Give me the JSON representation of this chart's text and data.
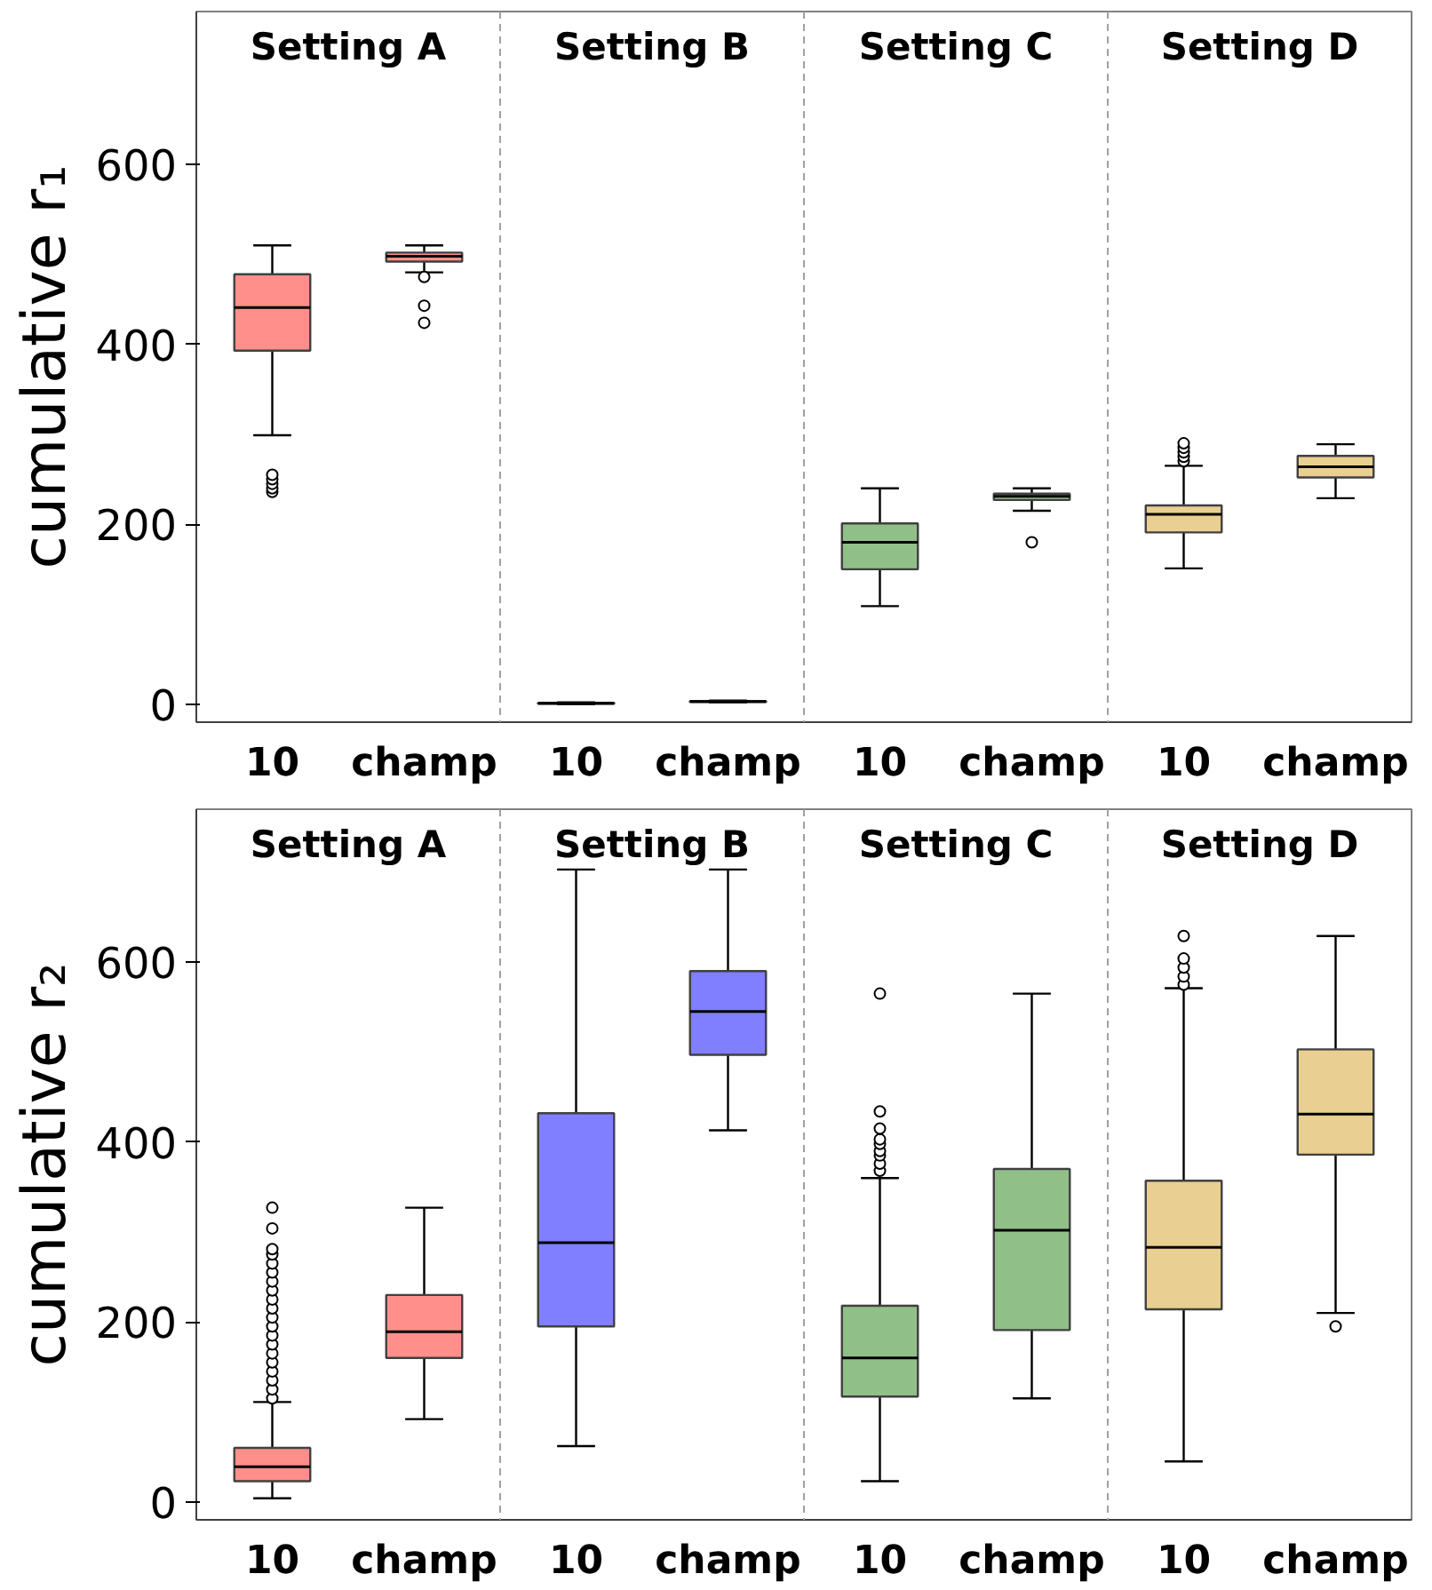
{
  "chart_data": [
    {
      "type": "box",
      "ylabel": "cumulative r₁",
      "categories": [
        "10",
        "champ",
        "10",
        "champ",
        "10",
        "champ",
        "10",
        "champ"
      ],
      "ylim": [
        -20,
        770
      ],
      "yticks": [
        0,
        200,
        400,
        600
      ],
      "grid": false,
      "colors": [
        "#ff8f8a",
        "#ff8f8a",
        "#7f7fff",
        "#7f7fff",
        "#90c088",
        "#90c088",
        "#e9cf91",
        "#e9cf91"
      ],
      "boxes": [
        {
          "low": 299,
          "q1": 393,
          "median": 441,
          "q3": 478,
          "high": 510,
          "outliers": [
            236,
            240,
            245,
            250,
            255
          ]
        },
        {
          "low": 480,
          "q1": 492,
          "median": 498,
          "q3": 502,
          "high": 510,
          "outliers": [
            475,
            443,
            424
          ]
        },
        {
          "low": 0,
          "q1": 0.5,
          "median": 1,
          "q3": 1.5,
          "high": 2
        },
        {
          "low": 2,
          "q1": 2.5,
          "median": 3,
          "q3": 3.5,
          "high": 4
        },
        {
          "low": 109,
          "q1": 150,
          "median": 180,
          "q3": 201,
          "high": 240
        },
        {
          "low": 215,
          "q1": 227,
          "median": 231,
          "q3": 234,
          "high": 240,
          "outliers": [
            180
          ]
        },
        {
          "low": 151,
          "q1": 191,
          "median": 211,
          "q3": 221,
          "high": 265,
          "outliers": [
            270,
            275,
            280,
            285,
            290
          ]
        },
        {
          "low": 229,
          "q1": 252,
          "median": 264,
          "q3": 276,
          "high": 289
        }
      ],
      "annotations": [
        "Setting A",
        "Setting B",
        "Setting C",
        "Setting D"
      ]
    },
    {
      "type": "box",
      "ylabel": "cumulative r₂",
      "categories": [
        "10",
        "champ",
        "10",
        "champ",
        "10",
        "champ",
        "10",
        "champ"
      ],
      "ylim": [
        -20,
        770
      ],
      "yticks": [
        0,
        200,
        400,
        600
      ],
      "grid": false,
      "colors": [
        "#ff8f8a",
        "#ff8f8a",
        "#7f7fff",
        "#7f7fff",
        "#90c088",
        "#90c088",
        "#e9cf91",
        "#e9cf91"
      ],
      "boxes": [
        {
          "low": 4,
          "q1": 23,
          "median": 39,
          "q3": 60,
          "high": 111,
          "outliers": [
            115,
            125,
            135,
            145,
            155,
            165,
            175,
            185,
            195,
            205,
            215,
            225,
            235,
            245,
            255,
            265,
            275,
            281,
            304,
            327
          ]
        },
        {
          "low": 92,
          "q1": 160,
          "median": 189,
          "q3": 230,
          "high": 327
        },
        {
          "low": 62,
          "q1": 195,
          "median": 288,
          "q3": 432,
          "high": 703
        },
        {
          "low": 413,
          "q1": 497,
          "median": 545,
          "q3": 590,
          "high": 703
        },
        {
          "low": 23,
          "q1": 117,
          "median": 160,
          "q3": 218,
          "high": 360,
          "outliers": [
            368,
            376,
            385,
            390,
            398,
            403,
            415,
            434,
            565
          ]
        },
        {
          "low": 115,
          "q1": 191,
          "median": 302,
          "q3": 370,
          "high": 565
        },
        {
          "low": 45,
          "q1": 214,
          "median": 283,
          "q3": 357,
          "high": 571,
          "outliers": [
            575,
            584,
            594,
            604,
            629
          ]
        },
        {
          "low": 210,
          "q1": 386,
          "median": 431,
          "q3": 503,
          "high": 629,
          "outliers": [
            195
          ]
        }
      ],
      "annotations": [
        "Setting A",
        "Setting B",
        "Setting C",
        "Setting D"
      ]
    }
  ]
}
